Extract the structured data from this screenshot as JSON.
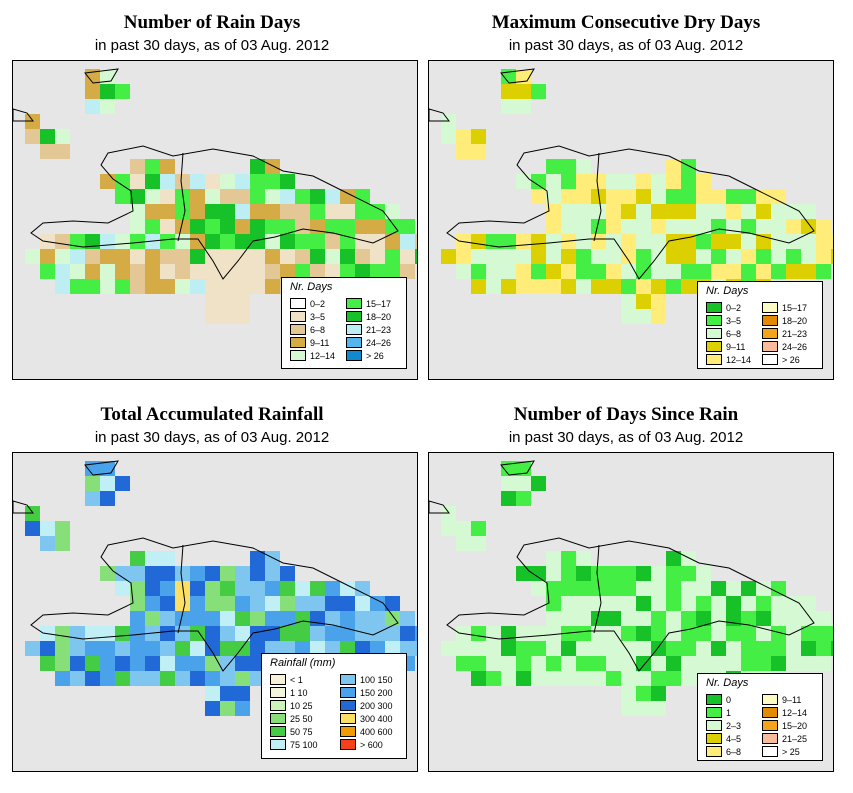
{
  "panels": [
    {
      "id": "rain-days",
      "title": "Number of Rain Days",
      "subtitle": "in past 30 days, as of  03 Aug. 2012",
      "legend_title": "Nr. Days",
      "legend": [
        {
          "label": "0–2",
          "color": "#ffffff"
        },
        {
          "label": "3–5",
          "color": "#f0e2c6"
        },
        {
          "label": "6–8",
          "color": "#e3c795"
        },
        {
          "label": "9–11",
          "color": "#d4ab44"
        },
        {
          "label": "12–14",
          "color": "#d5f9d2"
        },
        {
          "label": "15–17",
          "color": "#44ee44"
        },
        {
          "label": "18–20",
          "color": "#17c128"
        },
        {
          "label": "21–23",
          "color": "#bdeef4"
        },
        {
          "label": "24–26",
          "color": "#54b6ed"
        },
        {
          "label": "> 26",
          "color": "#1089d1"
        }
      ]
    },
    {
      "id": "dry-days",
      "title": "Maximum Consecutive Dry Days",
      "subtitle": "in past 30 days, as of  03 Aug. 2012",
      "legend_title": "Nr. Days",
      "legend": [
        {
          "label": "0–2",
          "color": "#17c128"
        },
        {
          "label": "3–5",
          "color": "#44ee44"
        },
        {
          "label": "6–8",
          "color": "#d5f9d2"
        },
        {
          "label": "9–11",
          "color": "#dcd000"
        },
        {
          "label": "12–14",
          "color": "#ffec79"
        },
        {
          "label": "15–17",
          "color": "#fdfbc4"
        },
        {
          "label": "18–20",
          "color": "#e48a00"
        },
        {
          "label": "21–23",
          "color": "#f4a41a"
        },
        {
          "label": "24–26",
          "color": "#f9bc9c"
        },
        {
          "label": "> 26",
          "color": "#ffffff"
        }
      ]
    },
    {
      "id": "total-rainfall",
      "title": "Total Accumulated Rainfall",
      "subtitle": "in past 30 days, as of  03 Aug. 2012",
      "legend_title": "Rainfall (mm)",
      "legend": [
        {
          "label": "< 1",
          "color": "#f8f1d9"
        },
        {
          "label": "1    10",
          "color": "#f4f6dc"
        },
        {
          "label": "10    25",
          "color": "#cdf4b8"
        },
        {
          "label": "25    50",
          "color": "#86df79"
        },
        {
          "label": "50    75",
          "color": "#44cc44"
        },
        {
          "label": "75   100",
          "color": "#c0f0f6"
        },
        {
          "label": "100   150",
          "color": "#7ec6f0"
        },
        {
          "label": "150   200",
          "color": "#4aa2ea"
        },
        {
          "label": "200   300",
          "color": "#2169d7"
        },
        {
          "label": "300   400",
          "color": "#fce065"
        },
        {
          "label": "400   600",
          "color": "#f29b00"
        },
        {
          "label": "> 600",
          "color": "#f4411b"
        }
      ]
    },
    {
      "id": "days-since-rain",
      "title": "Number of Days Since Rain",
      "subtitle": "in past 30 days, as of  03 Aug. 2012",
      "legend_title": "Nr. Days",
      "legend": [
        {
          "label": "0",
          "color": "#17c128"
        },
        {
          "label": "1",
          "color": "#44ee44"
        },
        {
          "label": "2–3",
          "color": "#d5f9d2"
        },
        {
          "label": "4–5",
          "color": "#dcd000"
        },
        {
          "label": "6–8",
          "color": "#ffec79"
        },
        {
          "label": "9–11",
          "color": "#fdfbc4"
        },
        {
          "label": "12–14",
          "color": "#e48a00"
        },
        {
          "label": "15–20",
          "color": "#f4a41a"
        },
        {
          "label": "21–25",
          "color": "#f9bc9c"
        },
        {
          "label": "> 25",
          "color": "#ffffff"
        }
      ]
    }
  ]
}
